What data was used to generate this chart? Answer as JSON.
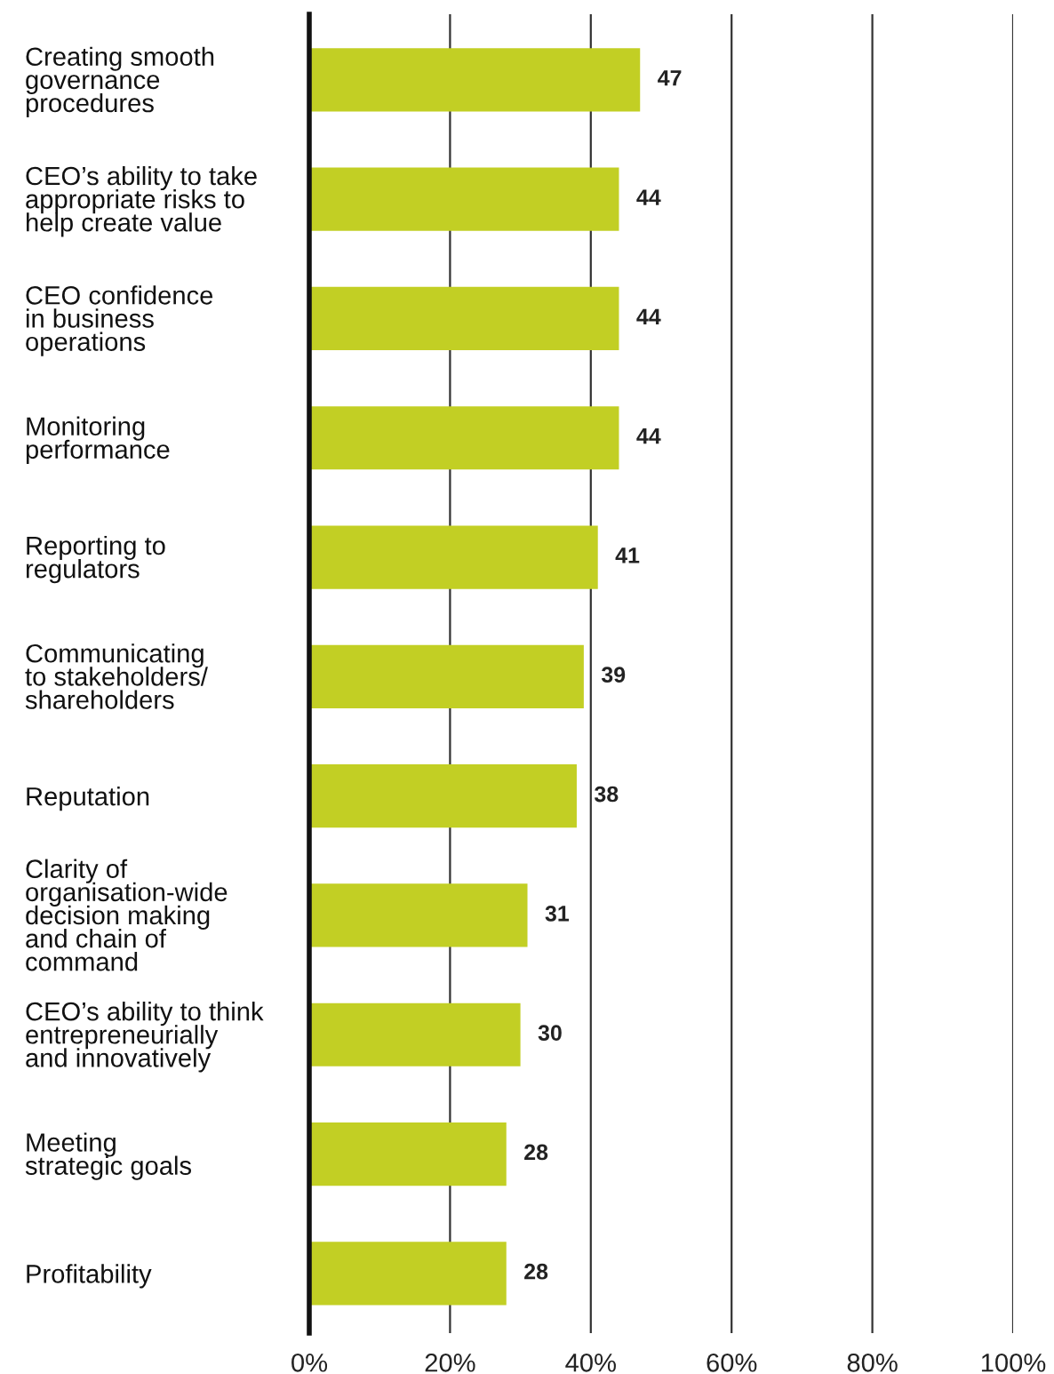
{
  "chart_data": {
    "type": "bar",
    "orientation": "horizontal",
    "categories": [
      "Creating smooth\ngovernance\nprocedures",
      "CEO’s ability to take\nappropriate risks to\nhelp create value",
      "CEO confidence\nin business\noperations",
      "Monitoring\nperformance",
      "Reporting to\nregulators",
      "Communicating\nto stakeholders/\nshareholders",
      "Reputation",
      "Clarity of\norganisation-wide\ndecision making\nand chain of\ncommand",
      "CEO’s ability to think\nentrepreneurially\nand innovatively",
      "Meeting\nstrategic goals",
      "Profitability"
    ],
    "values": [
      47,
      44,
      44,
      44,
      41,
      39,
      38,
      31,
      30,
      28,
      28
    ],
    "color": "#c2cf24",
    "xlim": [
      0,
      100
    ],
    "xticks": [
      {
        "value": 0,
        "label": "0%"
      },
      {
        "value": 20,
        "label": "20%"
      },
      {
        "value": 40,
        "label": "40%"
      },
      {
        "value": 60,
        "label": "60%"
      },
      {
        "value": 80,
        "label": "80%"
      },
      {
        "value": 100,
        "label": "100%"
      }
    ],
    "grid": "x",
    "data_labels": true
  }
}
